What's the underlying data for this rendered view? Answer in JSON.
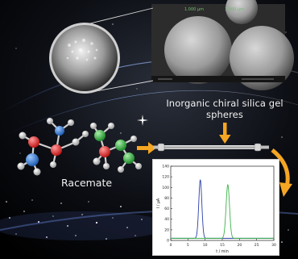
{
  "labels": {
    "column_title": "Inorganic chiral silica gel spheres",
    "racemate": "Racemate"
  },
  "sem": {
    "scale_left": "1.000 µm",
    "scale_right": "1.000 µm"
  },
  "chart_data": {
    "type": "line",
    "xlabel": "t / min",
    "ylabel": "I / µA",
    "xlim": [
      0,
      30
    ],
    "ylim": [
      0,
      140
    ],
    "x_ticks": [
      0,
      5,
      10,
      15,
      20,
      25,
      30
    ],
    "y_ticks": [
      0,
      20,
      40,
      60,
      80,
      100,
      120,
      140
    ],
    "series": [
      {
        "color": "#2b3fa8",
        "peak_x": 8.6,
        "peak_y": 114,
        "width": 0.45
      },
      {
        "color": "#3fb24a",
        "peak_x": 16.6,
        "peak_y": 105,
        "width": 0.5
      }
    ],
    "baseline": 4
  },
  "colors": {
    "arrow": "#f5a623",
    "carbon": "#e03030",
    "nitrogen": "#3b7fd6",
    "green_atom": "#3cb04a",
    "hydrogen": "#e8e8e8"
  }
}
